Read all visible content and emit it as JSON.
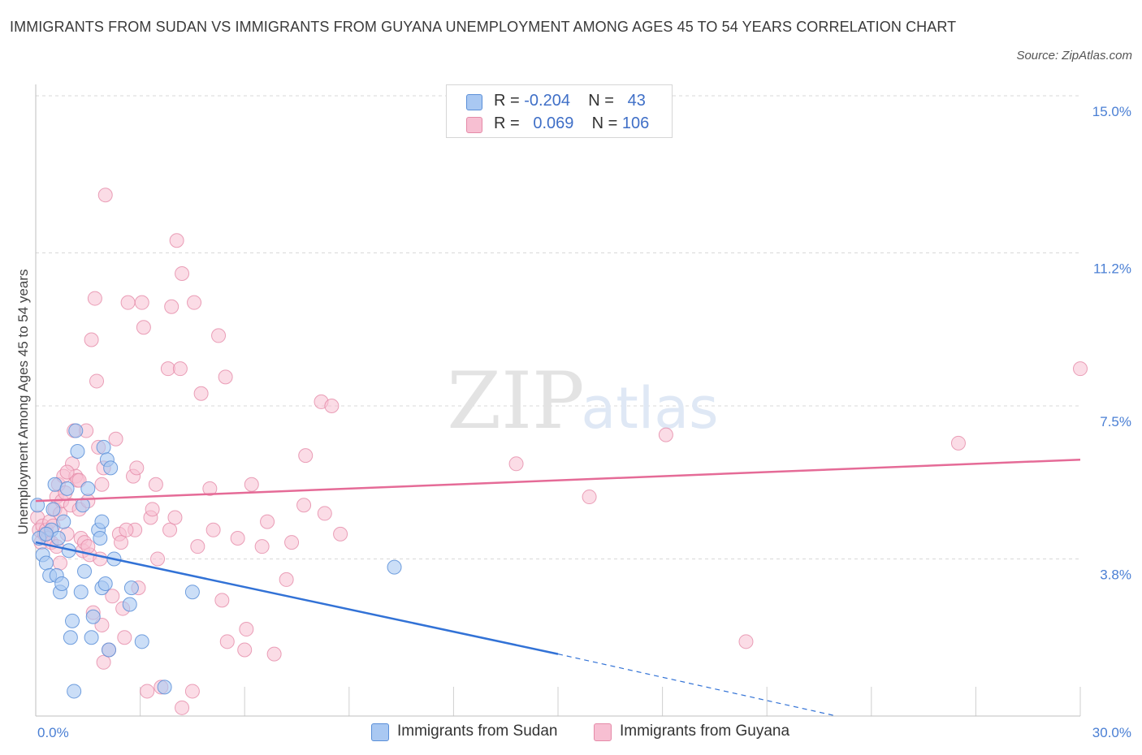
{
  "title": "IMMIGRANTS FROM SUDAN VS IMMIGRANTS FROM GUYANA UNEMPLOYMENT AMONG AGES 45 TO 54 YEARS CORRELATION CHART",
  "source": "Source: ZipAtlas.com",
  "watermark": {
    "zip": "ZIP",
    "atlas": "atlas"
  },
  "colors": {
    "sudan_fill": "#a9c8f2",
    "sudan_stroke": "#5a8fd8",
    "sudan_line": "#3272d6",
    "guyana_fill": "#f7bfd2",
    "guyana_stroke": "#e58aa8",
    "guyana_line": "#e56b97",
    "tick_text": "#4a7fd4",
    "grid": "#d8d8d8"
  },
  "legend": {
    "rows": [
      {
        "r_label": "R = ",
        "r_value": "-0.204",
        "n_label": "N = ",
        "n_value": "43"
      },
      {
        "r_label": "R = ",
        "r_value": "0.069",
        "n_label": "N = ",
        "n_value": "106"
      }
    ]
  },
  "bottom_legend": [
    "Immigrants from Sudan",
    "Immigrants from Guyana"
  ],
  "chart_data": {
    "type": "scatter",
    "title": "IMMIGRANTS FROM SUDAN VS IMMIGRANTS FROM GUYANA UNEMPLOYMENT AMONG AGES 45 TO 54 YEARS CORRELATION CHART",
    "xlabel": "",
    "ylabel": "Unemployment Among Ages 45 to 54 years",
    "xlim": [
      0,
      30
    ],
    "ylim": [
      0,
      15
    ],
    "x_tick_labels": [
      "0.0%",
      "30.0%"
    ],
    "y_ticks": [
      3.8,
      7.5,
      11.2,
      15.0
    ],
    "y_tick_labels": [
      "3.8%",
      "7.5%",
      "11.2%",
      "15.0%"
    ],
    "grid": "horizontal dashed",
    "legend_position": "top-center",
    "series": [
      {
        "name": "Immigrants from Sudan",
        "R": -0.204,
        "N": 43,
        "trend": {
          "x0": 0,
          "y0": 4.2,
          "x1": 15,
          "y1": 1.5,
          "dashed_to_x": 23,
          "dashed_to_y": 0.0
        },
        "points": [
          [
            0.05,
            5.1
          ],
          [
            0.1,
            4.3
          ],
          [
            0.2,
            3.9
          ],
          [
            0.3,
            3.7
          ],
          [
            0.4,
            3.4
          ],
          [
            0.45,
            4.5
          ],
          [
            0.5,
            5.0
          ],
          [
            0.55,
            5.6
          ],
          [
            0.6,
            3.4
          ],
          [
            0.65,
            4.3
          ],
          [
            0.7,
            3.0
          ],
          [
            0.75,
            3.2
          ],
          [
            0.8,
            4.7
          ],
          [
            0.9,
            5.5
          ],
          [
            0.95,
            4.0
          ],
          [
            1.0,
            1.9
          ],
          [
            1.05,
            2.3
          ],
          [
            1.1,
            0.6
          ],
          [
            1.15,
            6.9
          ],
          [
            1.2,
            6.4
          ],
          [
            1.3,
            3.0
          ],
          [
            1.35,
            5.1
          ],
          [
            1.4,
            3.5
          ],
          [
            1.5,
            5.5
          ],
          [
            1.6,
            1.9
          ],
          [
            1.65,
            2.4
          ],
          [
            1.8,
            4.5
          ],
          [
            1.85,
            4.3
          ],
          [
            1.9,
            4.7
          ],
          [
            1.9,
            3.1
          ],
          [
            1.95,
            6.5
          ],
          [
            2.0,
            3.2
          ],
          [
            2.05,
            6.2
          ],
          [
            2.1,
            1.6
          ],
          [
            2.15,
            6.0
          ],
          [
            2.25,
            3.8
          ],
          [
            2.7,
            2.7
          ],
          [
            2.75,
            3.1
          ],
          [
            3.05,
            1.8
          ],
          [
            3.7,
            0.7
          ],
          [
            4.5,
            3.0
          ],
          [
            10.3,
            3.6
          ],
          [
            0.3,
            4.4
          ]
        ]
      },
      {
        "name": "Immigrants from Guyana",
        "R": 0.069,
        "N": 106,
        "trend": {
          "x0": 0,
          "y0": 5.2,
          "x1": 30,
          "y1": 6.2
        },
        "points": [
          [
            0.05,
            4.8
          ],
          [
            0.1,
            4.5
          ],
          [
            0.15,
            4.2
          ],
          [
            0.2,
            4.6
          ],
          [
            0.25,
            4.4
          ],
          [
            0.3,
            4.5
          ],
          [
            0.35,
            4.3
          ],
          [
            0.4,
            4.7
          ],
          [
            0.45,
            4.2
          ],
          [
            0.5,
            4.6
          ],
          [
            0.55,
            5.0
          ],
          [
            0.6,
            5.3
          ],
          [
            0.65,
            5.6
          ],
          [
            0.7,
            4.9
          ],
          [
            0.75,
            5.2
          ],
          [
            0.8,
            5.8
          ],
          [
            0.85,
            5.4
          ],
          [
            0.9,
            4.4
          ],
          [
            1.0,
            5.1
          ],
          [
            1.05,
            6.1
          ],
          [
            1.1,
            6.9
          ],
          [
            1.15,
            5.8
          ],
          [
            1.2,
            5.7
          ],
          [
            1.25,
            5.0
          ],
          [
            1.3,
            4.3
          ],
          [
            1.35,
            4.0
          ],
          [
            1.4,
            4.2
          ],
          [
            1.45,
            6.9
          ],
          [
            1.5,
            5.2
          ],
          [
            1.55,
            3.9
          ],
          [
            1.6,
            9.1
          ],
          [
            1.65,
            2.5
          ],
          [
            1.7,
            10.1
          ],
          [
            1.75,
            8.1
          ],
          [
            1.8,
            6.5
          ],
          [
            1.85,
            3.8
          ],
          [
            1.9,
            5.6
          ],
          [
            1.95,
            6.0
          ],
          [
            1.9,
            2.2
          ],
          [
            1.95,
            1.3
          ],
          [
            2.0,
            12.6
          ],
          [
            2.1,
            1.6
          ],
          [
            2.2,
            2.9
          ],
          [
            2.3,
            6.7
          ],
          [
            2.4,
            4.4
          ],
          [
            2.45,
            4.2
          ],
          [
            2.5,
            2.6
          ],
          [
            2.55,
            1.9
          ],
          [
            2.65,
            10.0
          ],
          [
            2.8,
            5.8
          ],
          [
            2.85,
            4.5
          ],
          [
            2.9,
            6.0
          ],
          [
            2.95,
            3.1
          ],
          [
            3.05,
            10.0
          ],
          [
            3.1,
            9.4
          ],
          [
            3.2,
            0.6
          ],
          [
            3.3,
            4.8
          ],
          [
            3.35,
            5.0
          ],
          [
            3.45,
            5.6
          ],
          [
            3.5,
            3.8
          ],
          [
            3.8,
            8.4
          ],
          [
            3.85,
            4.5
          ],
          [
            3.9,
            9.9
          ],
          [
            4.0,
            4.8
          ],
          [
            4.05,
            11.5
          ],
          [
            4.15,
            8.4
          ],
          [
            4.2,
            10.7
          ],
          [
            4.5,
            0.6
          ],
          [
            4.55,
            10.0
          ],
          [
            4.65,
            4.1
          ],
          [
            4.75,
            7.8
          ],
          [
            5.0,
            5.5
          ],
          [
            5.1,
            4.5
          ],
          [
            5.25,
            9.2
          ],
          [
            5.35,
            2.8
          ],
          [
            5.45,
            8.2
          ],
          [
            5.5,
            1.8
          ],
          [
            5.8,
            4.3
          ],
          [
            6.0,
            1.6
          ],
          [
            6.05,
            2.1
          ],
          [
            6.2,
            5.6
          ],
          [
            6.5,
            4.1
          ],
          [
            6.65,
            4.7
          ],
          [
            6.85,
            1.5
          ],
          [
            7.2,
            3.3
          ],
          [
            7.35,
            4.2
          ],
          [
            7.7,
            5.1
          ],
          [
            7.75,
            6.3
          ],
          [
            8.2,
            7.6
          ],
          [
            8.3,
            4.9
          ],
          [
            8.5,
            7.5
          ],
          [
            8.75,
            4.4
          ],
          [
            4.2,
            0.2
          ],
          [
            13.8,
            6.1
          ],
          [
            15.9,
            5.3
          ],
          [
            18.1,
            6.8
          ],
          [
            20.4,
            1.8
          ],
          [
            26.5,
            6.6
          ],
          [
            30.0,
            8.4
          ],
          [
            0.6,
            4.1
          ],
          [
            0.7,
            3.7
          ],
          [
            1.5,
            4.1
          ],
          [
            2.6,
            4.5
          ],
          [
            3.6,
            0.7
          ],
          [
            0.9,
            5.9
          ],
          [
            1.25,
            5.7
          ]
        ]
      }
    ]
  }
}
